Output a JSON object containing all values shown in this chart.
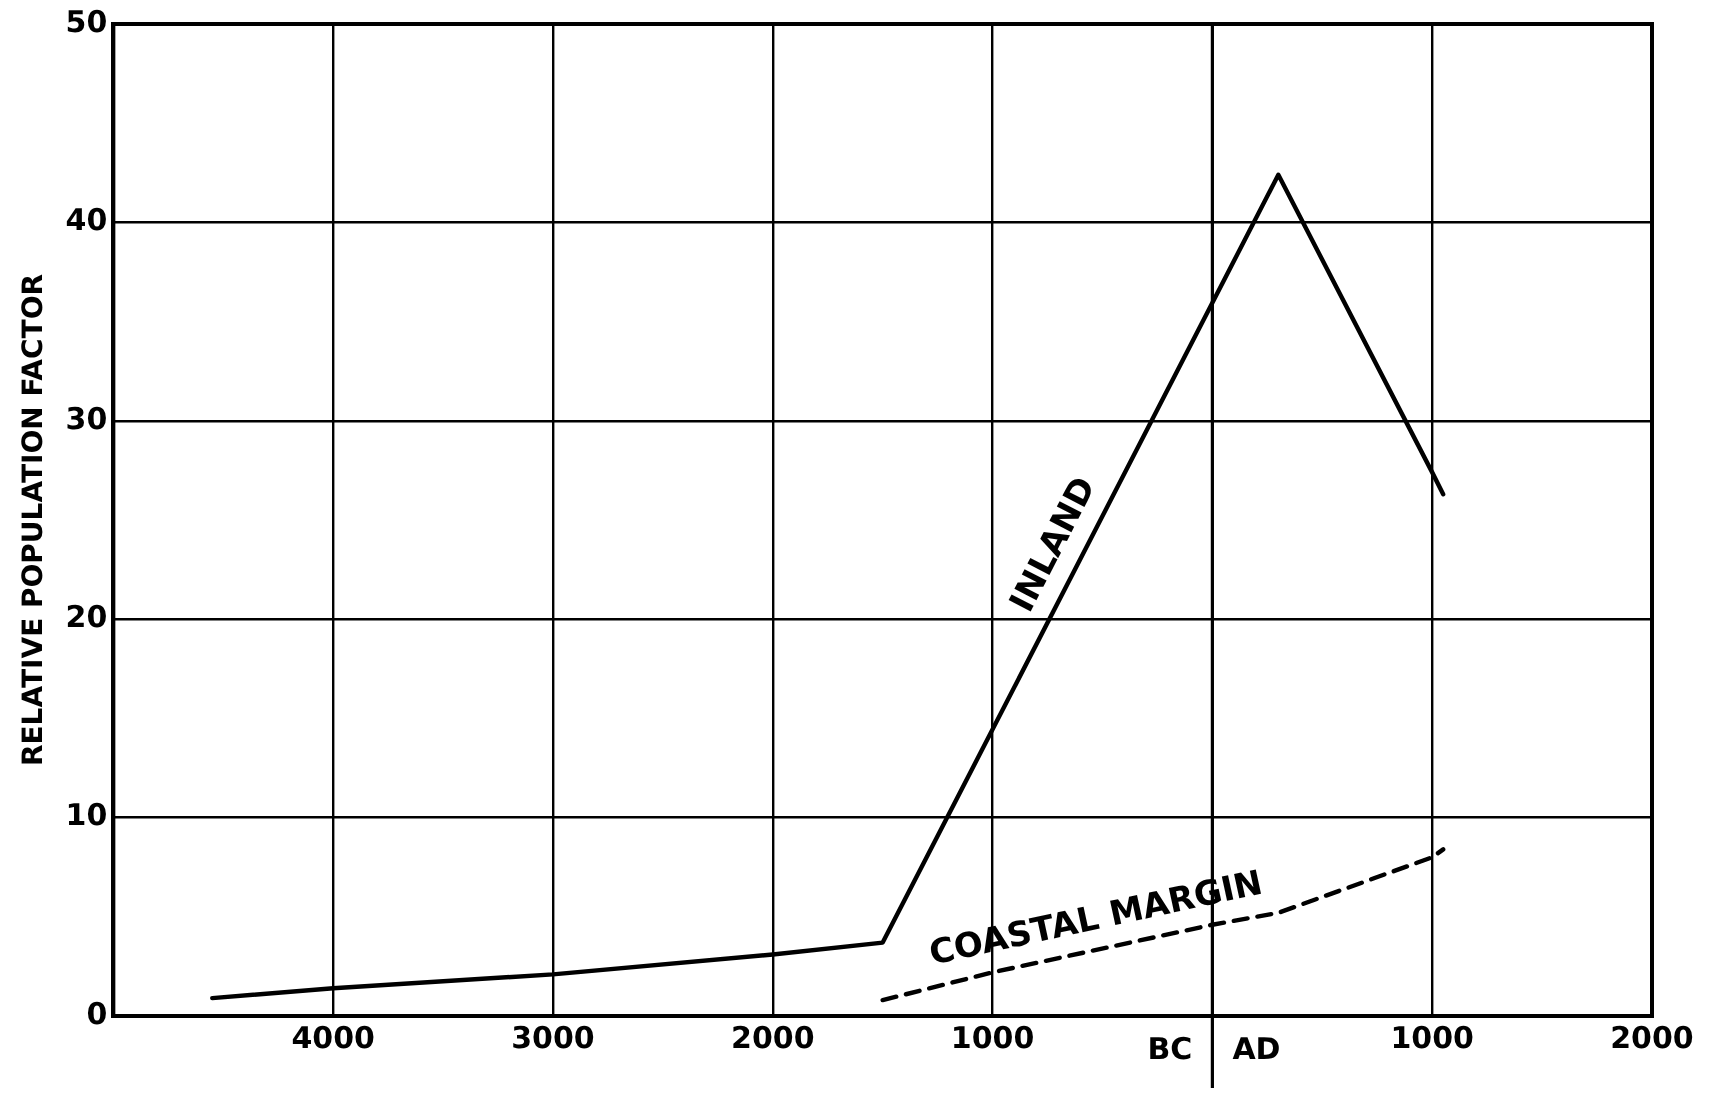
{
  "chart_data": {
    "type": "line",
    "ylabel": "RELATIVE POPULATION FACTOR",
    "xlim": [
      -5000,
      2000
    ],
    "xticks": [
      {
        "value": -4000,
        "label": "4000"
      },
      {
        "value": -3000,
        "label": "3000"
      },
      {
        "value": -2000,
        "label": "2000"
      },
      {
        "value": -1000,
        "label": "1000"
      },
      {
        "value": 0,
        "label": null
      },
      {
        "value": 1000,
        "label": "1000"
      },
      2000
    ],
    "ylim": [
      0,
      50
    ],
    "yticks": [
      0,
      10,
      20,
      30,
      40,
      50
    ],
    "series": [
      {
        "name": "INLAND",
        "color": "#000000",
        "line_style": "solid",
        "x": [
          -4550,
          -4000,
          -3000,
          -2000,
          -1500,
          300,
          1000,
          1050
        ],
        "values": [
          0.9,
          1.4,
          2.1,
          3.1,
          3.7,
          42.4,
          27.4,
          26.3
        ]
      },
      {
        "name": "COASTAL MARGIN",
        "color": "#000000",
        "line_style": "dashed",
        "x": [
          -1500,
          -1000,
          0,
          300,
          1000,
          1050
        ],
        "values": [
          0.8,
          2.2,
          4.6,
          5.2,
          8.0,
          8.4
        ]
      }
    ],
    "ref_lines": [
      {
        "axis": "x",
        "value": 0,
        "color": "#000000"
      }
    ],
    "annotations": [
      "BC",
      "AD"
    ],
    "grid": true,
    "legend": false,
    "marker": "none"
  }
}
